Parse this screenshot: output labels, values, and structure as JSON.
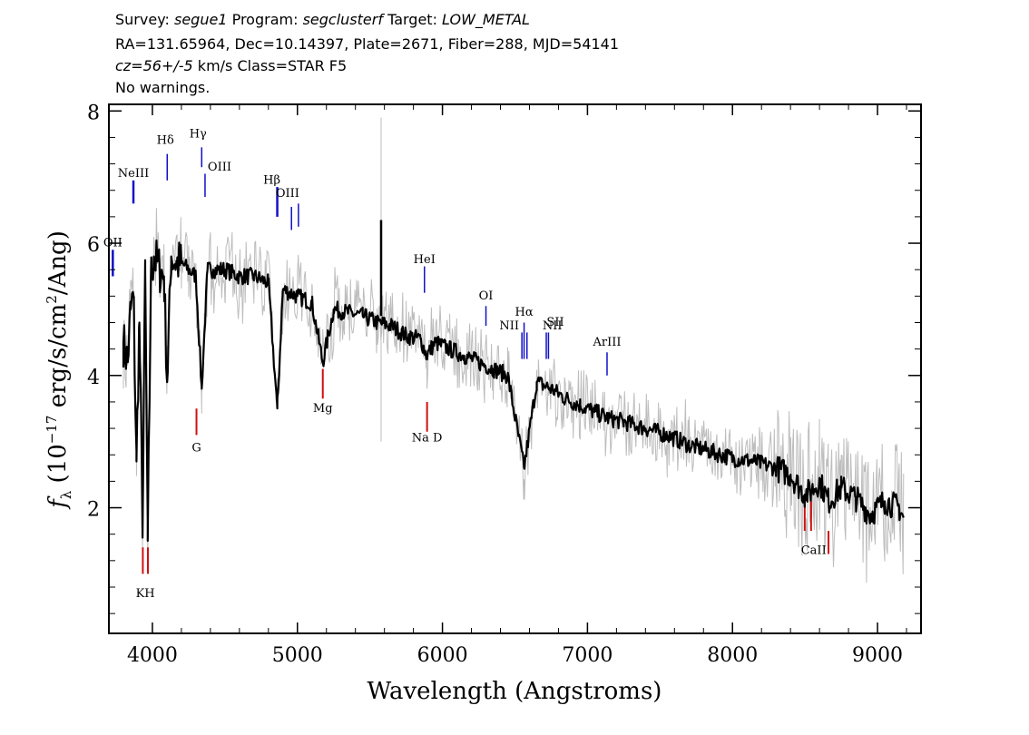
{
  "header": {
    "line1": {
      "survey_label": "Survey:",
      "survey": "segue1",
      "program_label": "Program:",
      "program": "segclusterf",
      "target_label": "Target:",
      "target": "LOW_METAL"
    },
    "line2": "RA=131.65964, Dec=10.14397, Plate=2671, Fiber=288, MJD=54141",
    "line3": {
      "cz": "cz=56+/-5",
      "rest": " km/s Class=STAR F5"
    },
    "line4": "No warnings."
  },
  "chart_data": {
    "type": "line",
    "xlabel": "Wavelength (Angstroms)",
    "ylabel": "f_λ (10^-17 erg/s/cm^2/Ang)",
    "xlim": [
      3700,
      9300
    ],
    "ylim": [
      0.1,
      8.1
    ],
    "xticks": [
      4000,
      5000,
      6000,
      7000,
      8000,
      9000
    ],
    "yticks": [
      2,
      4,
      6,
      8
    ],
    "series": [
      {
        "name": "",
        "color": "#000000",
        "x": [
          3800,
          3830,
          3850,
          3870,
          3890,
          3910,
          3933,
          3950,
          3968,
          3990,
          4010,
          4050,
          4080,
          4102,
          4130,
          4170,
          4200,
          4250,
          4300,
          4340,
          4380,
          4420,
          4500,
          4600,
          4700,
          4800,
          4861,
          4900,
          5000,
          5100,
          5175,
          5250,
          5350,
          5450,
          5550,
          5650,
          5750,
          5850,
          5890,
          5950,
          6050,
          6150,
          6250,
          6350,
          6450,
          6563,
          6650,
          6750,
          6850,
          6950,
          7050,
          7150,
          7250,
          7400,
          7550,
          7700,
          7850,
          8000,
          8150,
          8300,
          8400,
          8498,
          8542,
          8600,
          8662,
          8750,
          8850,
          8950,
          9050,
          9150,
          9180
        ],
        "values": [
          4.5,
          4.2,
          5.0,
          5.2,
          2.7,
          4.8,
          1.7,
          5.6,
          1.5,
          5.5,
          5.8,
          5.6,
          5.5,
          3.9,
          5.8,
          5.7,
          5.7,
          5.6,
          5.5,
          3.8,
          5.6,
          5.6,
          5.6,
          5.5,
          5.5,
          5.4,
          3.5,
          5.3,
          5.2,
          5.1,
          4.2,
          5.0,
          4.95,
          4.9,
          4.8,
          4.75,
          4.6,
          4.55,
          4.3,
          4.5,
          4.4,
          4.3,
          4.2,
          4.1,
          4.0,
          2.6,
          3.9,
          3.8,
          3.65,
          3.55,
          3.45,
          3.35,
          3.3,
          3.2,
          3.1,
          2.95,
          2.85,
          2.75,
          2.7,
          2.6,
          2.5,
          2.2,
          2.25,
          2.4,
          2.1,
          2.3,
          2.15,
          1.9,
          2.1,
          2.0,
          1.85
        ]
      }
    ],
    "emission_lines": [
      {
        "label": "OII",
        "x": 3727
      },
      {
        "label": "NeIII",
        "x": 3869
      },
      {
        "label": "Hδ",
        "x": 4102
      },
      {
        "label": "Hγ",
        "x": 4340
      },
      {
        "label": "OIII",
        "x": 4363
      },
      {
        "label": "Hβ",
        "x": 4861
      },
      {
        "label": "OIII",
        "x": 4959
      },
      {
        "label": "OIII",
        "x": 5007
      },
      {
        "label": "HeI",
        "x": 5876
      },
      {
        "label": "OI",
        "x": 6300
      },
      {
        "label": "NII",
        "x": 6548
      },
      {
        "label": "Hα",
        "x": 6563
      },
      {
        "label": "NII",
        "x": 6583
      },
      {
        "label": "SII",
        "x": 6716
      },
      {
        "label": "SII",
        "x": 6731
      },
      {
        "label": "ArIII",
        "x": 7135
      }
    ],
    "absorption_lines": [
      {
        "label": "K",
        "x": 3934
      },
      {
        "label": "H",
        "x": 3969
      },
      {
        "label": "G",
        "x": 4304
      },
      {
        "label": "Mg",
        "x": 5175
      },
      {
        "label": "Na D",
        "x": 5894
      },
      {
        "label": "CaII",
        "x": 8498
      },
      {
        "label": "CaII",
        "x": 8542
      },
      {
        "label": "CaII",
        "x": 8662
      }
    ],
    "colors": {
      "flux": "#000000",
      "error_band": "#bdbdbd",
      "emission": "#1010c8",
      "absorption": "#d01010"
    }
  }
}
